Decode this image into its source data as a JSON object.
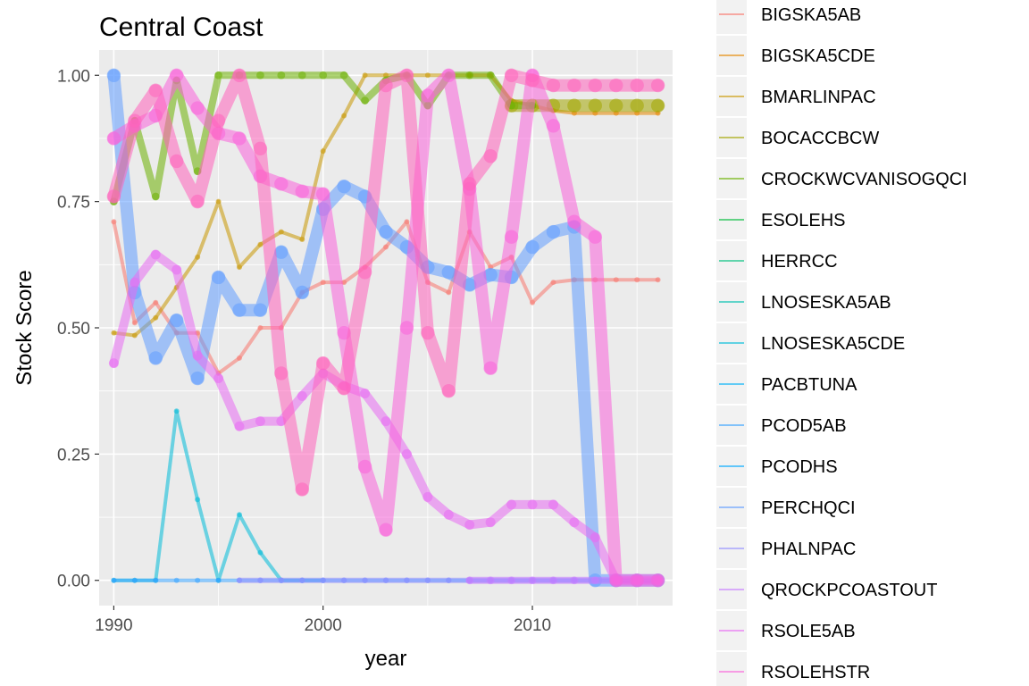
{
  "chart_data": {
    "type": "line",
    "title": "Central Coast",
    "xlabel": "year",
    "ylabel": "Stock Score",
    "xlim": [
      1989.3,
      2016.7
    ],
    "ylim": [
      -0.05,
      1.05
    ],
    "x_ticks": [
      1990,
      2000,
      2010
    ],
    "y_ticks": [
      0.0,
      0.25,
      0.5,
      0.75,
      1.0
    ],
    "y_tick_labels": [
      "0.00",
      "0.25",
      "0.50",
      "0.75",
      "1.00"
    ],
    "grid": true,
    "legend_position": "right",
    "series": [
      {
        "name": "BIGSKA5AB",
        "color": "#F8766D",
        "width": 4,
        "x": [
          1990,
          1991,
          1992,
          1993,
          1994,
          1995,
          1996,
          1997,
          1998,
          1999,
          2000,
          2001,
          2002,
          2003,
          2004,
          2005,
          2006,
          2007,
          2008,
          2009,
          2010,
          2011,
          2012,
          2013,
          2014,
          2015,
          2016
        ],
        "y": [
          0.71,
          0.51,
          0.55,
          0.49,
          0.49,
          0.41,
          0.44,
          0.5,
          0.5,
          0.57,
          0.59,
          0.59,
          0.62,
          0.66,
          0.71,
          0.59,
          0.57,
          0.69,
          0.62,
          0.64,
          0.55,
          0.59,
          0.595,
          0.595,
          0.595,
          0.595,
          0.595
        ]
      },
      {
        "name": "BIGSKA5CDE",
        "color": "#E58700",
        "width": 4,
        "x": [
          2007,
          2008,
          2009,
          2010,
          2011,
          2012,
          2013,
          2014,
          2015,
          2016
        ],
        "y": [
          1.0,
          1.0,
          0.95,
          0.94,
          0.93,
          0.925,
          0.925,
          0.925,
          0.925,
          0.925
        ]
      },
      {
        "name": "BMARLINPAC",
        "color": "#C99800",
        "width": 4,
        "x": [
          1990,
          1991,
          1992,
          1993,
          1994,
          1995,
          1996,
          1997,
          1998,
          1999,
          2000,
          2001,
          2002,
          2003,
          2004,
          2005,
          2006,
          2007
        ],
        "y": [
          0.49,
          0.485,
          0.52,
          0.58,
          0.64,
          0.75,
          0.62,
          0.665,
          0.69,
          0.675,
          0.85,
          0.92,
          1.0,
          1.0,
          1.0,
          1.0,
          1.0,
          1.0
        ]
      },
      {
        "name": "BOCACCBCW",
        "color": "#A3A500",
        "width": 14,
        "x": [
          2009,
          2010,
          2011,
          2012,
          2013,
          2014,
          2015,
          2016
        ],
        "y": [
          0.94,
          0.94,
          0.94,
          0.94,
          0.94,
          0.94,
          0.94,
          0.94
        ]
      },
      {
        "name": "CROCKWCVANISOGQCI",
        "color": "#6BB100",
        "width": 8,
        "x": [
          1990,
          1991,
          1992,
          1993,
          1994,
          1995,
          1996,
          1997,
          1998,
          1999,
          2000,
          2001,
          2002,
          2003,
          2004,
          2005,
          2006,
          2007,
          2008,
          2009,
          2010
        ],
        "y": [
          0.75,
          0.91,
          0.76,
          0.99,
          0.81,
          1.0,
          1.0,
          1.0,
          1.0,
          1.0,
          1.0,
          1.0,
          0.95,
          0.99,
          1.0,
          0.94,
          1.0,
          1.0,
          1.0,
          0.94,
          0.94
        ]
      },
      {
        "name": "ESOLEHS",
        "color": "#00BA38",
        "width": 4,
        "x": [],
        "y": []
      },
      {
        "name": "HERRCC",
        "color": "#00BF7D",
        "width": 4,
        "x": [],
        "y": []
      },
      {
        "name": "LNOSESKA5AB",
        "color": "#00C0AF",
        "width": 4,
        "x": [],
        "y": []
      },
      {
        "name": "LNOSESKA5CDE",
        "color": "#00BCD8",
        "width": 4,
        "x": [
          1990,
          1991,
          1992,
          1993,
          1994,
          1995,
          1996,
          1997,
          1998,
          1999,
          2000
        ],
        "y": [
          0.0,
          0.0,
          0.0,
          0.335,
          0.16,
          0.0,
          0.13,
          0.055,
          0.0,
          0.0,
          0.0
        ]
      },
      {
        "name": "PACBTUNA",
        "color": "#00B0F6",
        "width": 4,
        "x": [],
        "y": []
      },
      {
        "name": "PCOD5AB",
        "color": "#35A2FF",
        "width": 4,
        "x": [
          1990,
          1991,
          1992,
          1993,
          1994,
          1995,
          1996,
          1997,
          1998,
          1999,
          2000,
          2001,
          2002,
          2003,
          2004,
          2005,
          2006,
          2007,
          2008,
          2009,
          2010,
          2011,
          2012,
          2013,
          2014,
          2015,
          2016
        ],
        "y": [
          0,
          0,
          0,
          0,
          0,
          0,
          0,
          0,
          0,
          0,
          0,
          0,
          0,
          0,
          0,
          0,
          0,
          0,
          0,
          0,
          0,
          0,
          0,
          0,
          0,
          0,
          0
        ]
      },
      {
        "name": "PCODHS",
        "color": "#00A9FF",
        "width": 4,
        "x": [],
        "y": []
      },
      {
        "name": "PERCHQCI",
        "color": "#619CFF",
        "width": 14,
        "x": [
          1990,
          1991,
          1992,
          1993,
          1994,
          1995,
          1996,
          1997,
          1998,
          1999,
          2000,
          2001,
          2002,
          2003,
          2004,
          2005,
          2006,
          2007,
          2008,
          2009,
          2010,
          2011,
          2012,
          2013,
          2014,
          2015,
          2016
        ],
        "y": [
          1.0,
          0.57,
          0.44,
          0.515,
          0.4,
          0.6,
          0.535,
          0.535,
          0.65,
          0.57,
          0.735,
          0.78,
          0.76,
          0.69,
          0.66,
          0.62,
          0.61,
          0.585,
          0.605,
          0.6,
          0.66,
          0.69,
          0.7,
          0.0,
          0.0,
          0.0,
          0.0
        ]
      },
      {
        "name": "PHALNPAC",
        "color": "#9590FF",
        "width": 6,
        "x": [
          1996,
          1997,
          1998,
          1999,
          2000,
          2001,
          2002,
          2003,
          2004,
          2005,
          2006,
          2007,
          2008,
          2009,
          2010,
          2011,
          2012,
          2013,
          2014,
          2015,
          2016
        ],
        "y": [
          0,
          0,
          0,
          0,
          0,
          0,
          0,
          0,
          0,
          0,
          0,
          0,
          0,
          0,
          0,
          0,
          0,
          0,
          0,
          0,
          0
        ]
      },
      {
        "name": "QROCKPCOASTOUT",
        "color": "#C77CFF",
        "width": 8,
        "x": [
          2007,
          2008,
          2009,
          2010,
          2011,
          2012,
          2013,
          2014,
          2015,
          2016
        ],
        "y": [
          0,
          0,
          0,
          0,
          0,
          0,
          0,
          0,
          0,
          0
        ]
      },
      {
        "name": "RSOLE5AB",
        "color": "#E76BF3",
        "width": 10,
        "x": [
          1990,
          1991,
          1992,
          1993,
          1994,
          1995,
          1996,
          1997,
          1998,
          1999,
          2000,
          2001,
          2002,
          2003,
          2004,
          2005,
          2006,
          2007,
          2008,
          2009,
          2010,
          2011,
          2012,
          2013,
          2014,
          2015,
          2016
        ],
        "y": [
          0.43,
          0.59,
          0.645,
          0.615,
          0.445,
          0.4,
          0.305,
          0.315,
          0.315,
          0.365,
          0.41,
          0.385,
          0.37,
          0.315,
          0.25,
          0.165,
          0.13,
          0.11,
          0.115,
          0.15,
          0.15,
          0.15,
          0.115,
          0.085,
          0.0,
          0.0,
          0.0
        ]
      },
      {
        "name": "RSOLEHSTR",
        "color": "#FA62DB",
        "width": 14,
        "x": [
          1990,
          1991,
          1992,
          1993,
          1994,
          1995,
          1996,
          1997,
          1998,
          1999,
          2000,
          2001,
          2002,
          2003,
          2004,
          2005,
          2006,
          2007,
          2008,
          2009,
          2010,
          2011,
          2012,
          2013,
          2014,
          2015,
          2016
        ],
        "y": [
          0.875,
          0.9,
          0.92,
          1.0,
          0.935,
          0.885,
          0.875,
          0.8,
          0.785,
          0.77,
          0.765,
          0.49,
          0.225,
          0.1,
          0.5,
          0.96,
          1.0,
          0.775,
          0.42,
          0.68,
          1.0,
          0.9,
          0.71,
          0.68,
          0.0,
          0.0,
          0.0
        ]
      },
      {
        "name": "",
        "color": "#FF62BC",
        "width": 14,
        "x": [
          1990,
          1991,
          1992,
          1993,
          1994,
          1995,
          1996,
          1997,
          1998,
          1999,
          2000,
          2001,
          2002,
          2003,
          2004,
          2005,
          2006,
          2007,
          2008,
          2009,
          2010,
          2011,
          2012,
          2013,
          2014,
          2015,
          2016
        ],
        "y": [
          0.76,
          0.91,
          0.97,
          0.83,
          0.75,
          0.91,
          1.0,
          0.855,
          0.41,
          0.18,
          0.43,
          0.38,
          0.61,
          0.98,
          1.0,
          0.49,
          0.375,
          0.785,
          0.84,
          1.0,
          0.99,
          0.98,
          0.98,
          0.98,
          0.98,
          0.98,
          0.98
        ]
      }
    ]
  }
}
